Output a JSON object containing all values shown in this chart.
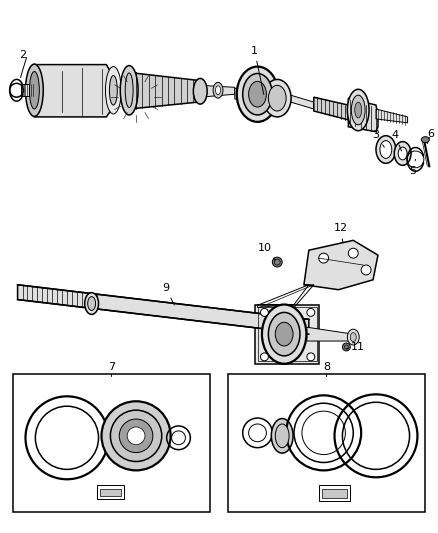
{
  "background_color": "#ffffff",
  "line_color": "#000000",
  "figure_width": 4.38,
  "figure_height": 5.33,
  "dpi": 100,
  "gray_light": "#e8e8e8",
  "gray_mid": "#c8c8c8",
  "gray_dark": "#a0a0a0",
  "gray_darker": "#808080",
  "gray_fill": "#d4d4d4",
  "shaft_color": "#e0e0e0",
  "boot_color": "#d0d0d0"
}
